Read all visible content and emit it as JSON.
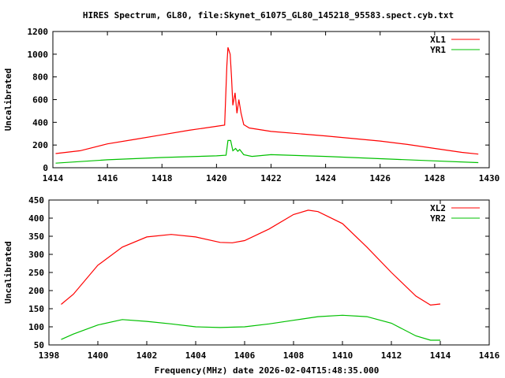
{
  "title": "HIRES Spectrum, GL80, file:Skynet_61075_GL80_145218_95583.spect.cyb.txt",
  "chart_data": [
    {
      "type": "line",
      "ylabel": "Uncalibrated",
      "xlim": [
        1414,
        1430
      ],
      "ylim": [
        0,
        1200
      ],
      "xticks": [
        1414,
        1416,
        1418,
        1420,
        1422,
        1424,
        1426,
        1428,
        1430
      ],
      "yticks": [
        0,
        200,
        400,
        600,
        800,
        1000,
        1200
      ],
      "legend": "top-right",
      "series": [
        {
          "name": "XL1",
          "color": "#ff0000",
          "points": [
            [
              1414.1,
              125
            ],
            [
              1415,
              150
            ],
            [
              1416,
              210
            ],
            [
              1417,
              250
            ],
            [
              1418,
              290
            ],
            [
              1419,
              330
            ],
            [
              1420,
              365
            ],
            [
              1420.3,
              375
            ],
            [
              1420.38,
              900
            ],
            [
              1420.42,
              1060
            ],
            [
              1420.5,
              1000
            ],
            [
              1420.55,
              800
            ],
            [
              1420.6,
              550
            ],
            [
              1420.68,
              660
            ],
            [
              1420.75,
              480
            ],
            [
              1420.82,
              600
            ],
            [
              1420.9,
              480
            ],
            [
              1421,
              380
            ],
            [
              1421.2,
              350
            ],
            [
              1422,
              320
            ],
            [
              1424,
              280
            ],
            [
              1426,
              235
            ],
            [
              1427,
              205
            ],
            [
              1428,
              170
            ],
            [
              1429,
              135
            ],
            [
              1429.6,
              120
            ]
          ]
        },
        {
          "name": "YR1",
          "color": "#00c000",
          "points": [
            [
              1414.1,
              40
            ],
            [
              1416,
              70
            ],
            [
              1418,
              90
            ],
            [
              1420,
              105
            ],
            [
              1420.35,
              110
            ],
            [
              1420.42,
              240
            ],
            [
              1420.52,
              240
            ],
            [
              1420.6,
              150
            ],
            [
              1420.7,
              170
            ],
            [
              1420.78,
              145
            ],
            [
              1420.85,
              160
            ],
            [
              1421,
              115
            ],
            [
              1421.3,
              100
            ],
            [
              1422,
              115
            ],
            [
              1424,
              100
            ],
            [
              1426,
              80
            ],
            [
              1428,
              60
            ],
            [
              1429.6,
              45
            ]
          ]
        }
      ]
    },
    {
      "type": "line",
      "ylabel": "Uncalibrated",
      "xlabel": "Frequency(MHz) date 2026-02-04T15:48:35.000",
      "xlim": [
        1398,
        1416
      ],
      "ylim": [
        50,
        450
      ],
      "xticks": [
        1398,
        1400,
        1402,
        1404,
        1406,
        1408,
        1410,
        1412,
        1414,
        1416
      ],
      "yticks": [
        50,
        100,
        150,
        200,
        250,
        300,
        350,
        400,
        450
      ],
      "legend": "top-right",
      "series": [
        {
          "name": "XL2",
          "color": "#ff0000",
          "points": [
            [
              1398.5,
              162
            ],
            [
              1399,
              190
            ],
            [
              1400,
              270
            ],
            [
              1401,
              320
            ],
            [
              1402,
              348
            ],
            [
              1403,
              355
            ],
            [
              1404,
              348
            ],
            [
              1405,
              333
            ],
            [
              1405.5,
              332
            ],
            [
              1406,
              338
            ],
            [
              1407,
              370
            ],
            [
              1408,
              410
            ],
            [
              1408.6,
              422
            ],
            [
              1409,
              418
            ],
            [
              1410,
              385
            ],
            [
              1411,
              320
            ],
            [
              1412,
              250
            ],
            [
              1413,
              185
            ],
            [
              1413.6,
              160
            ],
            [
              1414,
              163
            ]
          ]
        },
        {
          "name": "YR2",
          "color": "#00c000",
          "points": [
            [
              1398.5,
              65
            ],
            [
              1399,
              80
            ],
            [
              1400,
              105
            ],
            [
              1401,
              120
            ],
            [
              1402,
              115
            ],
            [
              1403,
              108
            ],
            [
              1404,
              100
            ],
            [
              1405,
              98
            ],
            [
              1406,
              100
            ],
            [
              1407,
              108
            ],
            [
              1408,
              118
            ],
            [
              1409,
              128
            ],
            [
              1410,
              132
            ],
            [
              1411,
              128
            ],
            [
              1412,
              110
            ],
            [
              1413,
              75
            ],
            [
              1413.6,
              63
            ],
            [
              1414,
              63
            ]
          ]
        }
      ]
    }
  ]
}
